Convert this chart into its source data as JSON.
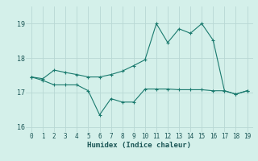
{
  "xlabel": "Humidex (Indice chaleur)",
  "x": [
    0,
    1,
    2,
    3,
    4,
    5,
    6,
    7,
    8,
    9,
    10,
    11,
    12,
    13,
    14,
    15,
    16,
    17,
    18,
    19
  ],
  "line1_y": [
    17.45,
    17.35,
    17.22,
    17.22,
    17.22,
    17.05,
    16.35,
    16.82,
    16.72,
    16.72,
    17.1,
    17.1,
    17.1,
    17.08,
    17.08,
    17.08,
    17.05,
    17.05,
    16.95,
    17.05
  ],
  "line2_y": [
    17.45,
    17.4,
    17.65,
    17.58,
    17.52,
    17.45,
    17.45,
    17.52,
    17.62,
    17.78,
    17.95,
    19.0,
    18.45,
    18.85,
    18.72,
    19.0,
    18.52,
    17.05,
    16.95,
    17.05
  ],
  "line_color": "#1a7a6e",
  "bg_color": "#d4f0ea",
  "plot_bg": "#d4f0ea",
  "grid_color": "#b8d8d4",
  "ylim": [
    15.85,
    19.5
  ],
  "yticks": [
    16,
    17,
    18,
    19
  ],
  "xlim": [
    -0.5,
    19.5
  ],
  "marker": "+"
}
